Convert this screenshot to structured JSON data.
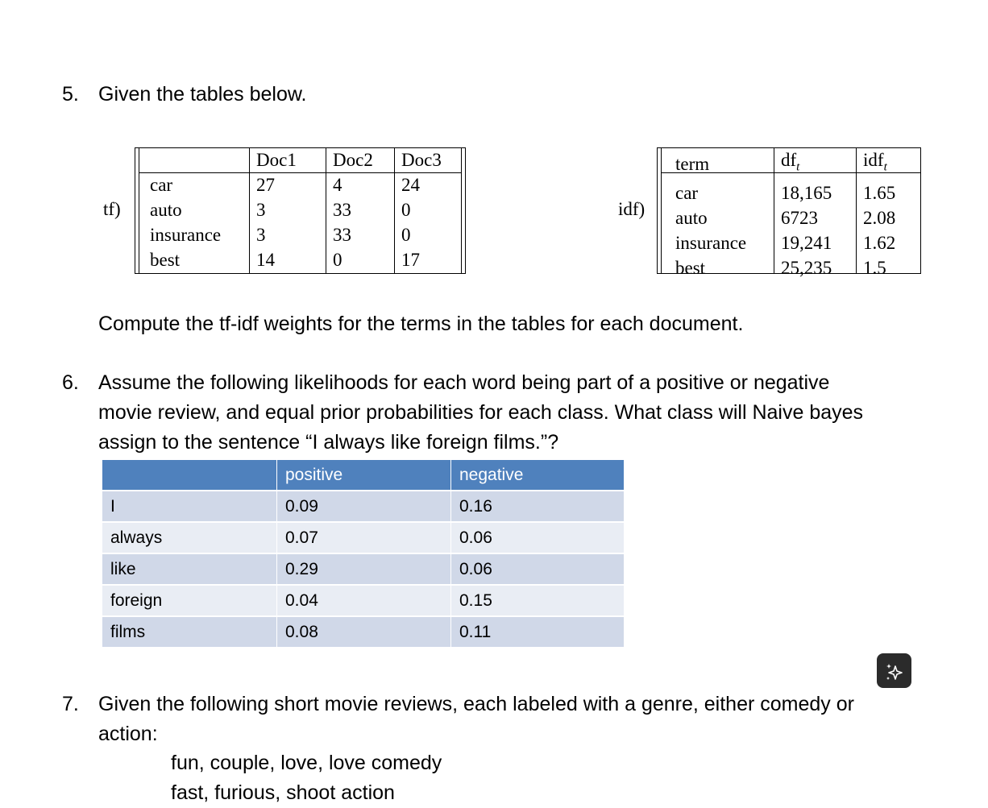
{
  "q5": {
    "number": "5.",
    "intro": "Given the tables below.",
    "tf_label": "tf)",
    "tf_headers": [
      "",
      "Doc1",
      "Doc2",
      "Doc3"
    ],
    "tf_rows": [
      [
        "car",
        "27",
        "4",
        "24"
      ],
      [
        "auto",
        "3",
        "33",
        "0"
      ],
      [
        "insurance",
        "3",
        "33",
        "0"
      ],
      [
        "best",
        "14",
        "0",
        "17"
      ]
    ],
    "idf_label": "idf)",
    "idf_headers": [
      "term",
      "df",
      "idf"
    ],
    "idf_subscript": "t",
    "idf_rows": [
      [
        "car",
        "18,165",
        "1.65"
      ],
      [
        "auto",
        "6723",
        "2.08"
      ],
      [
        "insurance",
        "19,241",
        "1.62"
      ],
      [
        "best",
        "25,235",
        "1.5"
      ]
    ],
    "instruction": "Compute the tf-idf weights for the terms in the tables for each document."
  },
  "q6": {
    "number": "6.",
    "lines": [
      "Assume the following likelihoods for each word being part of a positive or negative",
      "movie review, and equal prior probabilities for each class. What class will Naive bayes",
      "assign to the sentence “I always like foreign films.”?"
    ],
    "headers": [
      "",
      "positive",
      "negative"
    ],
    "rows": [
      [
        "I",
        "0.09",
        "0.16"
      ],
      [
        "always",
        "0.07",
        "0.06"
      ],
      [
        "like",
        "0.29",
        "0.06"
      ],
      [
        "foreign",
        "0.04",
        "0.15"
      ],
      [
        "films",
        "0.08",
        "0.11"
      ]
    ]
  },
  "q7": {
    "number": "7.",
    "lines": [
      "Given the following short movie reviews, each labeled with a genre, either comedy or",
      "action:"
    ],
    "examples": [
      "fun, couple, love, love comedy",
      "fast, furious, shoot action"
    ]
  },
  "icons": {
    "sparkle": "sparkle-icon"
  }
}
